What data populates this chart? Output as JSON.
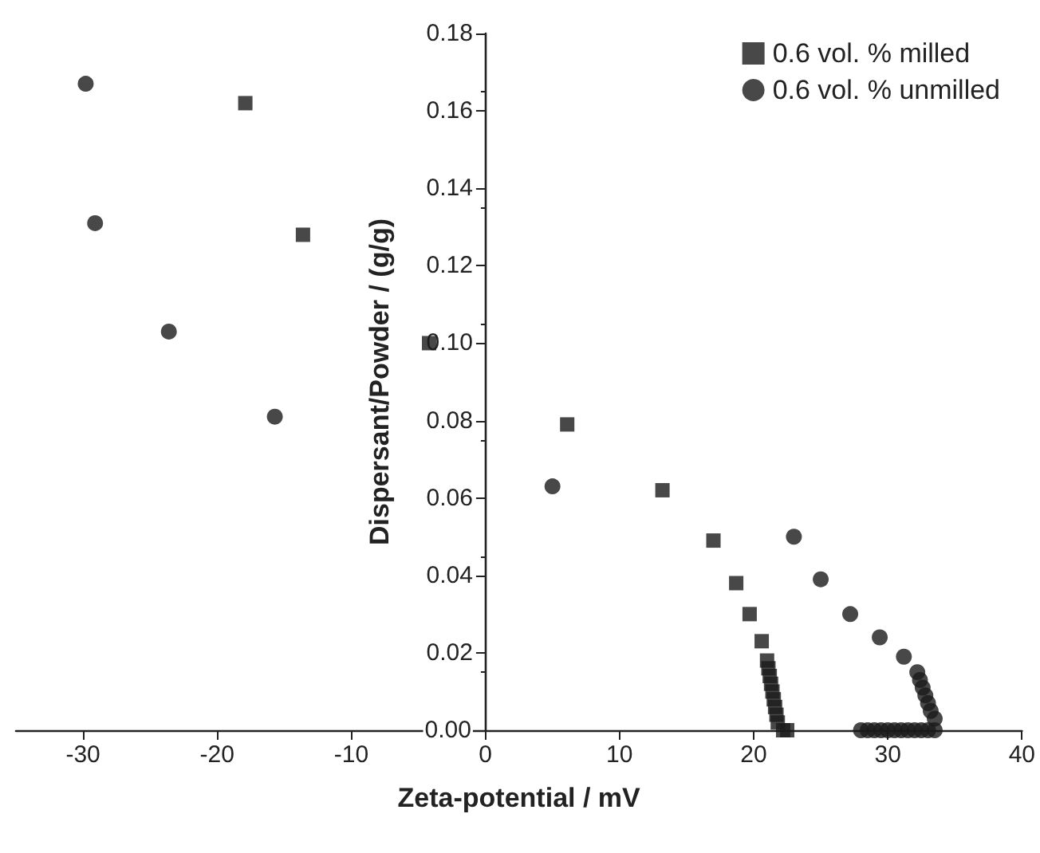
{
  "chart_data": {
    "type": "scatter",
    "xlabel": "Zeta-potential / mV",
    "ylabel": "Dispersant/Powder / (g/g)",
    "xlim": [
      -35,
      40
    ],
    "xticks": [
      -30,
      -20,
      -10,
      0,
      10,
      20,
      30,
      40
    ],
    "ylim": [
      0,
      0.18
    ],
    "yticks": [
      {
        "value": 0,
        "label": "0.00"
      },
      {
        "value": 0.02,
        "label": "0.02"
      },
      {
        "value": 0.04,
        "label": "0.04"
      },
      {
        "value": 0.06,
        "label": "0.06"
      },
      {
        "value": 0.08,
        "label": "0.08"
      },
      {
        "value": 0.1,
        "label": "0.10"
      },
      {
        "value": 0.12,
        "label": "0.12"
      },
      {
        "value": 0.14,
        "label": "0.14"
      },
      {
        "value": 0.16,
        "label": "0.16"
      },
      {
        "value": 0.18,
        "label": "0.18"
      }
    ],
    "grid": false,
    "legend": "top right",
    "series": [
      {
        "name": "0.6 vol. % milled",
        "color": "#1a1a1a",
        "marker": "square",
        "x": [
          -17.9,
          -13.6,
          -4.2,
          6.1,
          13.2,
          17.0,
          18.7,
          19.7,
          20.6,
          21.0,
          21.1,
          21.2,
          21.3,
          21.4,
          21.5,
          21.6,
          21.7,
          21.8,
          22.2,
          22.5
        ],
        "values": [
          0.162,
          0.128,
          0.1,
          0.079,
          0.062,
          0.049,
          0.038,
          0.03,
          0.023,
          0.018,
          0.016,
          0.014,
          0.012,
          0.01,
          0.008,
          0.006,
          0.004,
          0.002,
          0,
          0
        ]
      },
      {
        "name": "0.6 vol. % unmilled",
        "color": "#1a1a1a",
        "marker": "circle",
        "x": [
          -29.8,
          -29.1,
          -23.6,
          -15.7,
          5.0,
          23.0,
          25.0,
          27.2,
          29.4,
          31.2,
          32.2,
          32.4,
          32.6,
          32.8,
          33.0,
          33.2,
          33.5,
          33.5,
          33.0,
          32.5,
          32.0,
          31.5,
          31.0,
          30.5,
          30.0,
          29.5,
          29.0,
          28.5,
          28.0
        ],
        "values": [
          0.167,
          0.131,
          0.103,
          0.081,
          0.063,
          0.05,
          0.039,
          0.03,
          0.024,
          0.019,
          0.015,
          0.013,
          0.011,
          0.009,
          0.007,
          0.005,
          0.003,
          0,
          0,
          0,
          0,
          0,
          0,
          0,
          0,
          0,
          0,
          0,
          0
        ]
      }
    ]
  }
}
